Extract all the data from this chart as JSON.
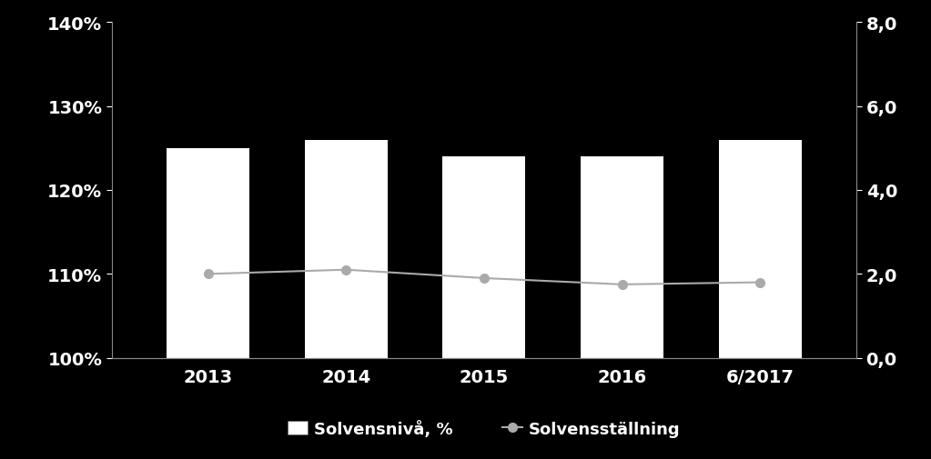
{
  "categories": [
    "2013",
    "2014",
    "2015",
    "2016",
    "6/2017"
  ],
  "bar_values": [
    125,
    126,
    124,
    124,
    126
  ],
  "line_values": [
    2.0,
    2.1,
    1.9,
    1.75,
    1.8
  ],
  "bar_color": "#ffffff",
  "bar_edgecolor": "#ffffff",
  "line_color": "#aaaaaa",
  "line_marker": "o",
  "line_marker_facecolor": "#aaaaaa",
  "line_marker_edgecolor": "#aaaaaa",
  "background_color": "#000000",
  "axes_color": "#ffffff",
  "tick_color": "#ffffff",
  "spine_color": "#888888",
  "left_ylim": [
    100,
    140
  ],
  "left_yticks": [
    100,
    110,
    120,
    130,
    140
  ],
  "left_yticklabels": [
    "100%",
    "110%",
    "120%",
    "130%",
    "140%"
  ],
  "right_ylim": [
    0.0,
    8.0
  ],
  "right_yticks": [
    0.0,
    2.0,
    4.0,
    6.0,
    8.0
  ],
  "right_yticklabels": [
    "0,0",
    "2,0",
    "4,0",
    "6,0",
    "8,0"
  ],
  "legend_bar_label": "Solvensnivå, %",
  "legend_line_label": "Solvensställning",
  "tick_fontsize": 14,
  "legend_fontsize": 13,
  "bar_width": 0.6
}
